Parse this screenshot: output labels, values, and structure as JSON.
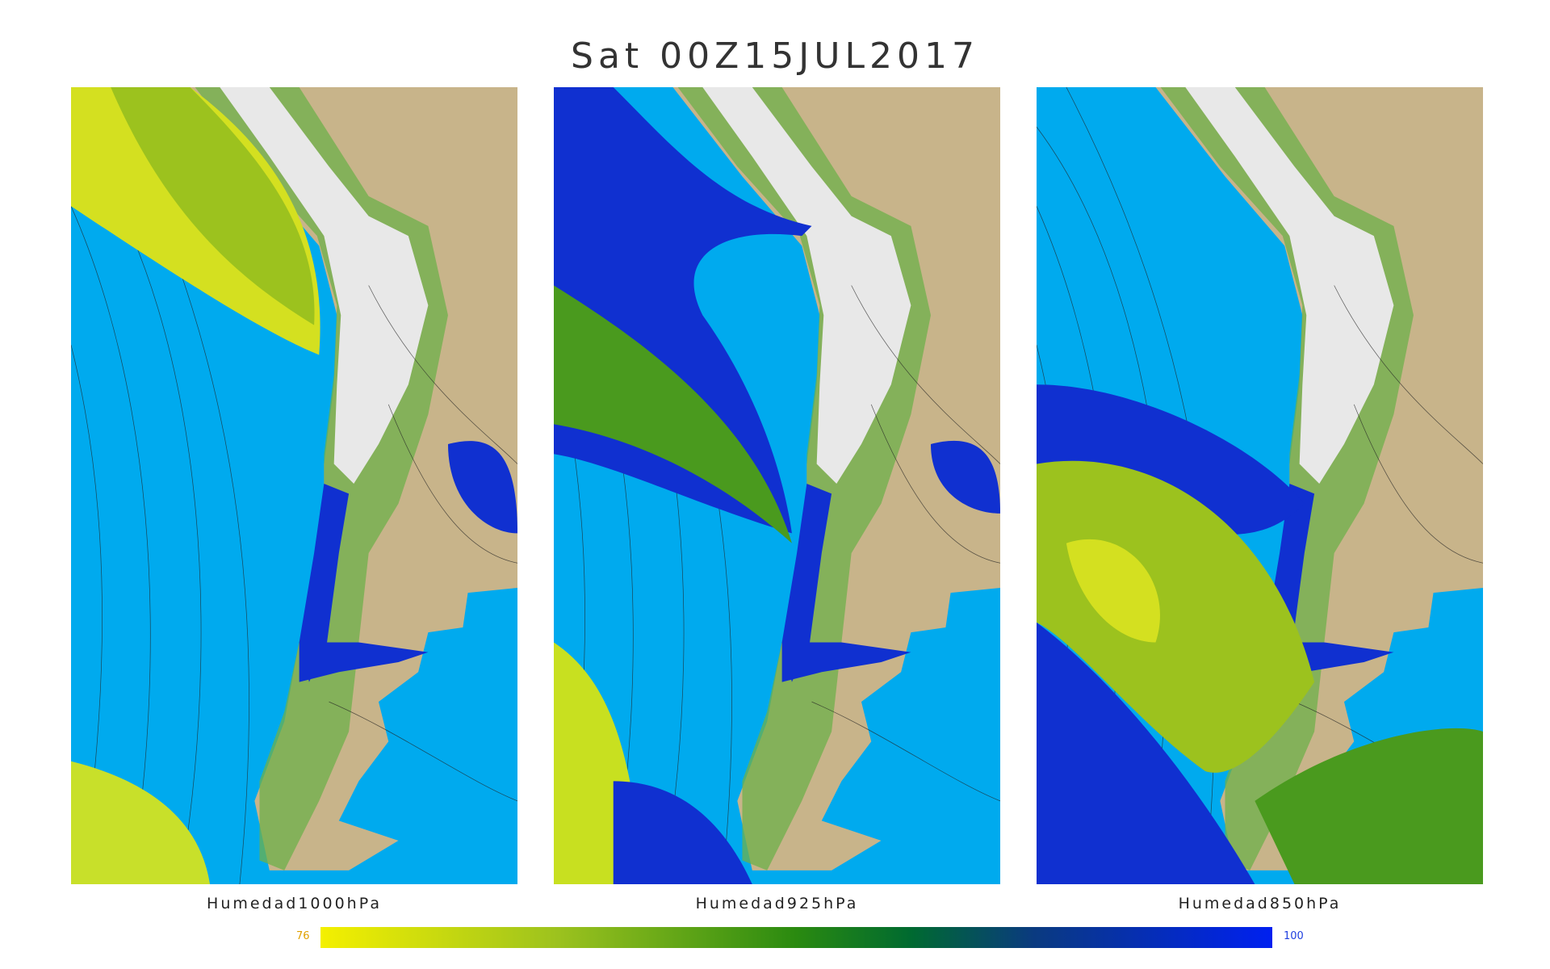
{
  "header": {
    "title": "Sat 00Z15JUL2017"
  },
  "panels": [
    {
      "label": "Humedad1000hPa"
    },
    {
      "label": "Humedad925hPa"
    },
    {
      "label": "Humedad850hPa"
    }
  ],
  "colorbar": {
    "min": "76",
    "max": "100"
  }
}
